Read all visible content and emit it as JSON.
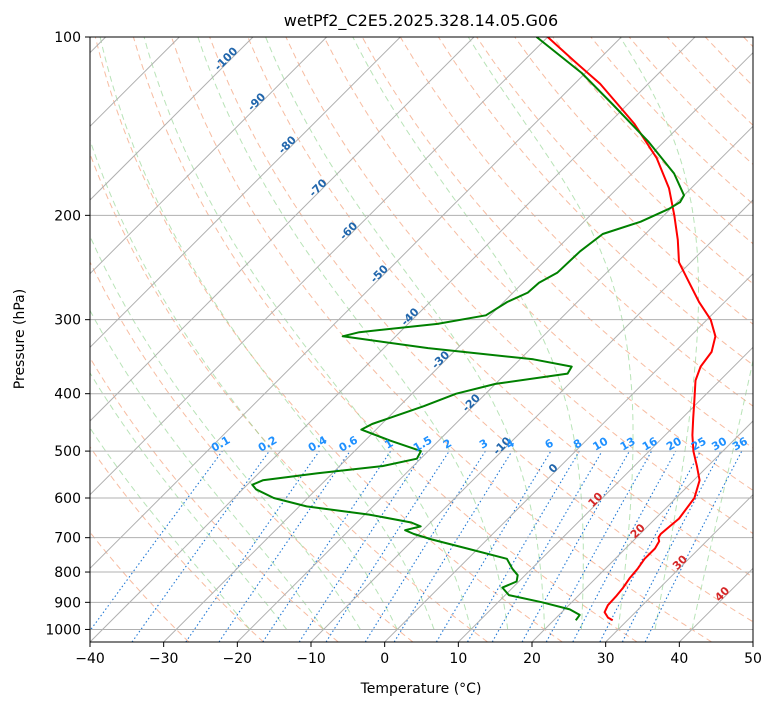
{
  "chart_data": {
    "type": "line",
    "title": "wetPf2_C2E5.2025.328.14.05.G06",
    "xlabel": "Temperature (°C)",
    "ylabel": "Pressure (hPa)",
    "xlim": [
      -40,
      50
    ],
    "ylim": [
      1050,
      100
    ],
    "y_scale": "log",
    "x_ticks": [
      -40,
      -30,
      -20,
      -10,
      0,
      10,
      20,
      30,
      40,
      50
    ],
    "x_tick_labels": [
      "−40",
      "−30",
      "−20",
      "−10",
      "0",
      "10",
      "20",
      "30",
      "40",
      "50"
    ],
    "y_ticks": [
      100,
      200,
      300,
      400,
      500,
      600,
      700,
      800,
      900,
      1000
    ],
    "y_tick_labels": [
      "100",
      "200",
      "300",
      "400",
      "500",
      "600",
      "700",
      "800",
      "900",
      "1000"
    ],
    "grid": true,
    "series": [
      {
        "color": "#ff0000",
        "points": [
          {
            "p": 965,
            "t": 28.0
          },
          {
            "p": 955,
            "t": 27.0
          },
          {
            "p": 935,
            "t": 25.8
          },
          {
            "p": 910,
            "t": 25.3
          },
          {
            "p": 880,
            "t": 25.2
          },
          {
            "p": 850,
            "t": 25.0
          },
          {
            "p": 820,
            "t": 24.6
          },
          {
            "p": 790,
            "t": 24.4
          },
          {
            "p": 760,
            "t": 24.0
          },
          {
            "p": 730,
            "t": 24.0
          },
          {
            "p": 710,
            "t": 23.6
          },
          {
            "p": 700,
            "t": 23.0
          },
          {
            "p": 690,
            "t": 22.8
          },
          {
            "p": 670,
            "t": 23.0
          },
          {
            "p": 650,
            "t": 23.2
          },
          {
            "p": 600,
            "t": 22.5
          },
          {
            "p": 560,
            "t": 20.8
          },
          {
            "p": 530,
            "t": 18.5
          },
          {
            "p": 500,
            "t": 16.0
          },
          {
            "p": 470,
            "t": 13.7
          },
          {
            "p": 440,
            "t": 11.5
          },
          {
            "p": 410,
            "t": 9.2
          },
          {
            "p": 380,
            "t": 6.7
          },
          {
            "p": 360,
            "t": 5.5
          },
          {
            "p": 340,
            "t": 5.0
          },
          {
            "p": 320,
            "t": 3.4
          },
          {
            "p": 300,
            "t": 0.5
          },
          {
            "p": 280,
            "t": -3.5
          },
          {
            "p": 260,
            "t": -7.4
          },
          {
            "p": 240,
            "t": -11.6
          },
          {
            "p": 220,
            "t": -14.8
          },
          {
            "p": 200,
            "t": -18.6
          },
          {
            "p": 180,
            "t": -23.0
          },
          {
            "p": 160,
            "t": -28.8
          },
          {
            "p": 140,
            "t": -36.5
          },
          {
            "p": 130,
            "t": -41.3
          },
          {
            "p": 120,
            "t": -46.5
          },
          {
            "p": 110,
            "t": -53.0
          },
          {
            "p": 100,
            "t": -60.0
          }
        ]
      },
      {
        "color": "#008000",
        "points": [
          {
            "p": 965,
            "t": 23.0
          },
          {
            "p": 945,
            "t": 22.8
          },
          {
            "p": 925,
            "t": 20.7
          },
          {
            "p": 900,
            "t": 16.0
          },
          {
            "p": 875,
            "t": 10.5
          },
          {
            "p": 850,
            "t": 8.6
          },
          {
            "p": 830,
            "t": 9.7
          },
          {
            "p": 810,
            "t": 9.0
          },
          {
            "p": 790,
            "t": 7.4
          },
          {
            "p": 760,
            "t": 5.3
          },
          {
            "p": 730,
            "t": -1.5
          },
          {
            "p": 705,
            "t": -7.5
          },
          {
            "p": 690,
            "t": -10.7
          },
          {
            "p": 680,
            "t": -12.4
          },
          {
            "p": 670,
            "t": -10.8
          },
          {
            "p": 660,
            "t": -12.6
          },
          {
            "p": 640,
            "t": -19.4
          },
          {
            "p": 620,
            "t": -29.0
          },
          {
            "p": 600,
            "t": -34.6
          },
          {
            "p": 580,
            "t": -38.2
          },
          {
            "p": 570,
            "t": -39.3
          },
          {
            "p": 560,
            "t": -38.5
          },
          {
            "p": 545,
            "t": -32.0
          },
          {
            "p": 530,
            "t": -24.2
          },
          {
            "p": 515,
            "t": -20.5
          },
          {
            "p": 500,
            "t": -21.0
          },
          {
            "p": 480,
            "t": -26.6
          },
          {
            "p": 460,
            "t": -32.0
          },
          {
            "p": 450,
            "t": -31.3
          },
          {
            "p": 420,
            "t": -26.7
          },
          {
            "p": 400,
            "t": -24.0
          },
          {
            "p": 385,
            "t": -20.0
          },
          {
            "p": 370,
            "t": -11.6
          },
          {
            "p": 360,
            "t": -12.0
          },
          {
            "p": 350,
            "t": -18.2
          },
          {
            "p": 335,
            "t": -34.0
          },
          {
            "p": 320,
            "t": -47.2
          },
          {
            "p": 315,
            "t": -45.5
          },
          {
            "p": 305,
            "t": -36.0
          },
          {
            "p": 295,
            "t": -30.6
          },
          {
            "p": 280,
            "t": -29.5
          },
          {
            "p": 270,
            "t": -28.0
          },
          {
            "p": 260,
            "t": -27.8
          },
          {
            "p": 250,
            "t": -26.7
          },
          {
            "p": 230,
            "t": -26.5
          },
          {
            "p": 215,
            "t": -25.8
          },
          {
            "p": 205,
            "t": -22.3
          },
          {
            "p": 195,
            "t": -20.2
          },
          {
            "p": 190,
            "t": -19.6
          },
          {
            "p": 185,
            "t": -20.0
          },
          {
            "p": 170,
            "t": -24.3
          },
          {
            "p": 150,
            "t": -32.2
          },
          {
            "p": 130,
            "t": -42.0
          },
          {
            "p": 115,
            "t": -50.5
          },
          {
            "p": 100,
            "t": -61.5
          }
        ]
      }
    ],
    "isotherm_labels": [
      "-100",
      "-90",
      "-80",
      "-70",
      "-60",
      "-50",
      "-40",
      "-30",
      "-20",
      "-10",
      "0",
      "10",
      "20",
      "30",
      "40"
    ],
    "mixing_ratio_labels": [
      "0.1",
      "0.2",
      "0.4",
      "0.6",
      "1",
      "1.5",
      "2",
      "3",
      "4",
      "6",
      "8",
      "10",
      "13",
      "16",
      "20",
      "25",
      "30",
      "36"
    ],
    "colors": {
      "temperature": "#ff0000",
      "dewpoint": "#008000",
      "grid": "#b0b0b0",
      "dry_adiabat": "#f4a582",
      "moist_adiabat": "#92d490",
      "mixing_ratio": "#1f77d4",
      "isotherm_label_cold": "#2166ac",
      "isotherm_label_warm": "#d62728",
      "mixing_ratio_label": "#1e90ff"
    }
  }
}
